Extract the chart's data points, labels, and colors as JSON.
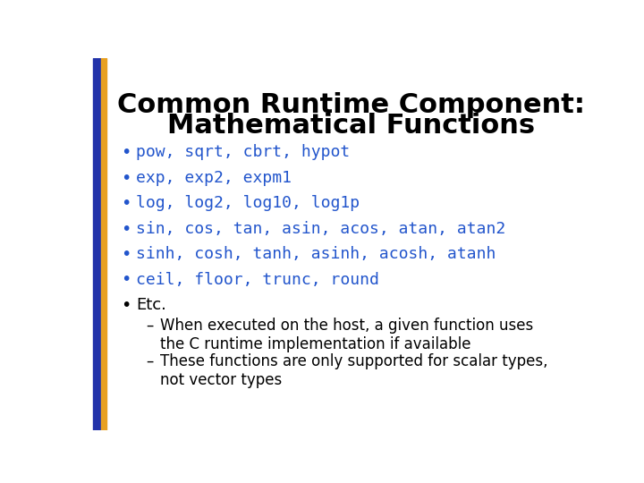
{
  "title_line1": "Common Runtime Component:",
  "title_line2": "Mathematical Functions",
  "title_color": "#000000",
  "title_fontsize": 22,
  "background_color": "#ffffff",
  "bar_blue": "#2233AA",
  "bar_gold": "#E8A020",
  "bullet_color": "#2255CC",
  "bullet_items": [
    "pow, sqrt, cbrt, hypot",
    "exp, exp2, expm1",
    "log, log2, log10, log1p",
    "sin, cos, tan, asin, acos, atan, atan2",
    "sinh, cosh, tanh, asinh, acosh, atanh",
    "ceil, floor, trunc, round"
  ],
  "etc_item": "Etc.",
  "sub_bullets": [
    "When executed on the host, a given function uses\nthe C runtime implementation if available",
    "These functions are only supported for scalar types,\nnot vector types"
  ],
  "bullet_fontsize": 13,
  "sub_bullet_fontsize": 12,
  "etc_fontsize": 13
}
